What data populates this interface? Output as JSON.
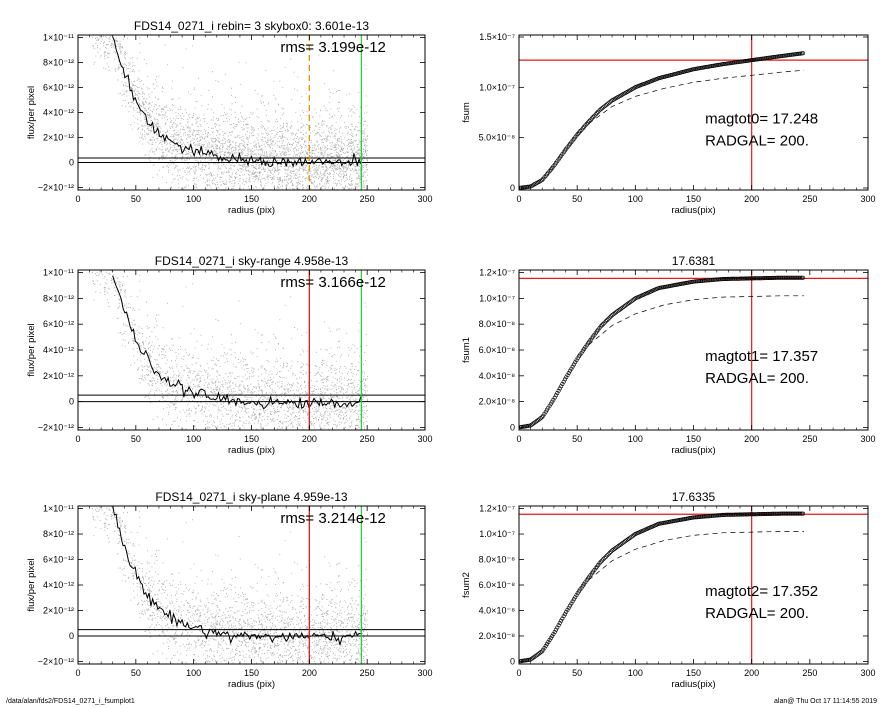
{
  "footer": {
    "left": "/data/alan/fds2/FDS14_0271_i_fsumplot1",
    "right": "alan@  Thu Oct 17 11:14:55 2019"
  },
  "colors": {
    "red": "#e41a1c",
    "green": "#2ecc40",
    "orange": "#f09000",
    "gray": "#a8a8a8",
    "black": "#000000"
  },
  "chart_data": [
    {
      "type": "scatter",
      "title": "FDS14_0271_i rebin= 3    skybox0:  3.601e-13",
      "annotation": "rms= 3.199e-12",
      "xlabel": "radius (pix)",
      "ylabel": "flux/per pixel",
      "xlim": [
        0,
        300
      ],
      "ylim": [
        -2.2e-12,
        1.02e-11
      ],
      "xticks": [
        0,
        50,
        100,
        150,
        200,
        250,
        300
      ],
      "yticks": [
        {
          "value": 1e-11,
          "label": "1×10⁻¹¹"
        },
        {
          "value": 8e-12,
          "label": "8×10⁻¹²"
        },
        {
          "value": 6e-12,
          "label": "6×10⁻¹²"
        },
        {
          "value": 4e-12,
          "label": "4×10⁻¹²"
        },
        {
          "value": 2e-12,
          "label": "2×10⁻¹²"
        },
        {
          "value": 0,
          "label": "0"
        },
        {
          "value": -2e-12,
          "label": "−2×10⁻¹²"
        }
      ],
      "profile": [
        [
          30,
          1e-11
        ],
        [
          35,
          8.8e-12
        ],
        [
          40,
          7.2e-12
        ],
        [
          45,
          6e-12
        ],
        [
          50,
          5e-12
        ],
        [
          55,
          4.1e-12
        ],
        [
          60,
          3.4e-12
        ],
        [
          70,
          2.4e-12
        ],
        [
          80,
          1.7e-12
        ],
        [
          90,
          1.2e-12
        ],
        [
          100,
          9e-13
        ],
        [
          110,
          6.5e-13
        ],
        [
          120,
          4.5e-13
        ],
        [
          130,
          3e-13
        ],
        [
          140,
          2e-13
        ],
        [
          150,
          1.3e-13
        ],
        [
          170,
          6e-14
        ],
        [
          200,
          2e-14
        ],
        [
          245,
          0
        ]
      ],
      "hlines": [
        3.6e-13,
        0
      ],
      "vlines": [
        {
          "x": 200,
          "style": "orange-dashed"
        },
        {
          "x": 245,
          "style": "green"
        }
      ]
    },
    {
      "type": "line",
      "title": "",
      "annotation_lines": [
        "magtot0=  17.248",
        "RADGAL=    200."
      ],
      "xlabel": "radius(pix)",
      "ylabel": "fsum",
      "xlim": [
        0,
        300
      ],
      "ylim": [
        -2e-09,
        1.52e-07
      ],
      "xticks": [
        0,
        50,
        100,
        150,
        200,
        250,
        300
      ],
      "yticks": [
        {
          "value": 1.5e-07,
          "label": "1.5×10⁻⁷"
        },
        {
          "value": 1e-07,
          "label": "1.0×10⁻⁷"
        },
        {
          "value": 5e-08,
          "label": "5.0×10⁻⁸"
        },
        {
          "value": 0,
          "label": "0"
        }
      ],
      "curve": [
        [
          0,
          0
        ],
        [
          10,
          1.5e-09
        ],
        [
          20,
          8e-09
        ],
        [
          30,
          2.2e-08
        ],
        [
          40,
          3.8e-08
        ],
        [
          50,
          5.3e-08
        ],
        [
          60,
          6.6e-08
        ],
        [
          70,
          7.8e-08
        ],
        [
          80,
          8.7e-08
        ],
        [
          100,
          1e-07
        ],
        [
          120,
          1.09e-07
        ],
        [
          150,
          1.18e-07
        ],
        [
          175,
          1.23e-07
        ],
        [
          200,
          1.27e-07
        ],
        [
          225,
          1.31e-07
        ],
        [
          245,
          1.34e-07
        ]
      ],
      "dashed": [
        [
          60,
          6.4e-08
        ],
        [
          80,
          8.1e-08
        ],
        [
          100,
          9.1e-08
        ],
        [
          125,
          9.9e-08
        ],
        [
          150,
          1.05e-07
        ],
        [
          175,
          1.09e-07
        ],
        [
          200,
          1.12e-07
        ],
        [
          225,
          1.15e-07
        ],
        [
          245,
          1.17e-07
        ]
      ],
      "hline": 1.27e-07,
      "vline": 200
    },
    {
      "type": "scatter",
      "title": "FDS14_0271_i sky-range  4.958e-13",
      "annotation": "rms= 3.166e-12",
      "xlabel": "radius (pix)",
      "ylabel": "flux/per pixel",
      "xlim": [
        0,
        300
      ],
      "ylim": [
        -2.2e-12,
        1.02e-11
      ],
      "xticks": [
        0,
        50,
        100,
        150,
        200,
        250,
        300
      ],
      "yticks": [
        {
          "value": 1e-11,
          "label": "1×10⁻¹¹"
        },
        {
          "value": 8e-12,
          "label": "8×10⁻¹²"
        },
        {
          "value": 6e-12,
          "label": "6×10⁻¹²"
        },
        {
          "value": 4e-12,
          "label": "4×10⁻¹²"
        },
        {
          "value": 2e-12,
          "label": "2×10⁻¹²"
        },
        {
          "value": 0,
          "label": "0"
        },
        {
          "value": -2e-12,
          "label": "−2×10⁻¹²"
        }
      ],
      "profile": [
        [
          30,
          1e-11
        ],
        [
          35,
          8.6e-12
        ],
        [
          40,
          7e-12
        ],
        [
          45,
          5.8e-12
        ],
        [
          50,
          4.8e-12
        ],
        [
          55,
          3.9e-12
        ],
        [
          60,
          3.2e-12
        ],
        [
          70,
          2.2e-12
        ],
        [
          80,
          1.5e-12
        ],
        [
          90,
          1e-12
        ],
        [
          100,
          7e-13
        ],
        [
          110,
          4.5e-13
        ],
        [
          120,
          2.5e-13
        ],
        [
          130,
          1e-13
        ],
        [
          140,
          0
        ],
        [
          150,
          -5e-14
        ],
        [
          170,
          -1e-13
        ],
        [
          200,
          -1.2e-13
        ],
        [
          245,
          -1.3e-13
        ]
      ],
      "hlines": [
        5e-13,
        0
      ],
      "vlines": [
        {
          "x": 200,
          "style": "red"
        },
        {
          "x": 245,
          "style": "green"
        }
      ]
    },
    {
      "type": "line",
      "title": "17.6381",
      "annotation_lines": [
        "magtot1=  17.357",
        "RADGAL=    200."
      ],
      "xlabel": "radius(pix)",
      "ylabel": "fsum1",
      "xlim": [
        0,
        300
      ],
      "ylim": [
        -2e-09,
        1.22e-07
      ],
      "xticks": [
        0,
        50,
        100,
        150,
        200,
        250,
        300
      ],
      "yticks": [
        {
          "value": 1.2e-07,
          "label": "1.2×10⁻⁷"
        },
        {
          "value": 1e-07,
          "label": "1.0×10⁻⁷"
        },
        {
          "value": 8e-08,
          "label": "8.0×10⁻⁸"
        },
        {
          "value": 6e-08,
          "label": "6.0×10⁻⁸"
        },
        {
          "value": 4e-08,
          "label": "4.0×10⁻⁸"
        },
        {
          "value": 2e-08,
          "label": "2.0×10⁻⁸"
        },
        {
          "value": 0,
          "label": "0"
        }
      ],
      "curve": [
        [
          0,
          0
        ],
        [
          10,
          1.5e-09
        ],
        [
          20,
          8e-09
        ],
        [
          30,
          2.2e-08
        ],
        [
          40,
          3.8e-08
        ],
        [
          50,
          5.3e-08
        ],
        [
          60,
          6.6e-08
        ],
        [
          70,
          7.8e-08
        ],
        [
          80,
          8.7e-08
        ],
        [
          100,
          1e-07
        ],
        [
          120,
          1.08e-07
        ],
        [
          150,
          1.13e-07
        ],
        [
          175,
          1.15e-07
        ],
        [
          200,
          1.155e-07
        ],
        [
          225,
          1.16e-07
        ],
        [
          245,
          1.16e-07
        ]
      ],
      "dashed": [
        [
          60,
          6.4e-08
        ],
        [
          80,
          7.9e-08
        ],
        [
          100,
          8.8e-08
        ],
        [
          125,
          9.5e-08
        ],
        [
          150,
          9.9e-08
        ],
        [
          175,
          1.01e-07
        ],
        [
          200,
          1.015e-07
        ],
        [
          225,
          1.02e-07
        ],
        [
          245,
          1.02e-07
        ]
      ],
      "hline": 1.155e-07,
      "vline": 200
    },
    {
      "type": "scatter",
      "title": "FDS14_0271_i sky-plane  4.959e-13",
      "annotation": "rms= 3.214e-12",
      "xlabel": "radius (pix)",
      "ylabel": "flux/per pixel",
      "xlim": [
        0,
        300
      ],
      "ylim": [
        -2.2e-12,
        1.02e-11
      ],
      "xticks": [
        0,
        50,
        100,
        150,
        200,
        250,
        300
      ],
      "yticks": [
        {
          "value": 1e-11,
          "label": "1×10⁻¹¹"
        },
        {
          "value": 8e-12,
          "label": "8×10⁻¹²"
        },
        {
          "value": 6e-12,
          "label": "6×10⁻¹²"
        },
        {
          "value": 4e-12,
          "label": "4×10⁻¹²"
        },
        {
          "value": 2e-12,
          "label": "2×10⁻¹²"
        },
        {
          "value": 0,
          "label": "0"
        },
        {
          "value": -2e-12,
          "label": "−2×10⁻¹²"
        }
      ],
      "profile": [
        [
          30,
          1e-11
        ],
        [
          35,
          8.6e-12
        ],
        [
          40,
          7e-12
        ],
        [
          45,
          5.8e-12
        ],
        [
          50,
          4.8e-12
        ],
        [
          55,
          3.9e-12
        ],
        [
          60,
          3.2e-12
        ],
        [
          70,
          2.2e-12
        ],
        [
          80,
          1.5e-12
        ],
        [
          90,
          1e-12
        ],
        [
          100,
          7e-13
        ],
        [
          110,
          4.5e-13
        ],
        [
          120,
          2.5e-13
        ],
        [
          130,
          1e-13
        ],
        [
          140,
          0
        ],
        [
          150,
          -2e-14
        ],
        [
          170,
          -6e-14
        ],
        [
          200,
          -8e-14
        ],
        [
          245,
          -9e-14
        ]
      ],
      "hlines": [
        5e-13,
        0
      ],
      "vlines": [
        {
          "x": 200,
          "style": "red"
        },
        {
          "x": 245,
          "style": "green"
        }
      ]
    },
    {
      "type": "line",
      "title": "17.6335",
      "annotation_lines": [
        "magtot2=  17.352",
        "RADGAL=    200."
      ],
      "xlabel": "radius(pix)",
      "ylabel": "fsum2",
      "xlim": [
        0,
        300
      ],
      "ylim": [
        -2e-09,
        1.22e-07
      ],
      "xticks": [
        0,
        50,
        100,
        150,
        200,
        250,
        300
      ],
      "yticks": [
        {
          "value": 1.2e-07,
          "label": "1.2×10⁻⁷"
        },
        {
          "value": 1e-07,
          "label": "1.0×10⁻⁷"
        },
        {
          "value": 8e-08,
          "label": "8.0×10⁻⁸"
        },
        {
          "value": 6e-08,
          "label": "6.0×10⁻⁸"
        },
        {
          "value": 4e-08,
          "label": "4.0×10⁻⁸"
        },
        {
          "value": 2e-08,
          "label": "2.0×10⁻⁸"
        },
        {
          "value": 0,
          "label": "0"
        }
      ],
      "curve": [
        [
          0,
          0
        ],
        [
          10,
          1.5e-09
        ],
        [
          20,
          8e-09
        ],
        [
          30,
          2.2e-08
        ],
        [
          40,
          3.8e-08
        ],
        [
          50,
          5.3e-08
        ],
        [
          60,
          6.6e-08
        ],
        [
          70,
          7.8e-08
        ],
        [
          80,
          8.7e-08
        ],
        [
          100,
          1e-07
        ],
        [
          120,
          1.08e-07
        ],
        [
          150,
          1.13e-07
        ],
        [
          175,
          1.15e-07
        ],
        [
          200,
          1.155e-07
        ],
        [
          225,
          1.16e-07
        ],
        [
          245,
          1.16e-07
        ]
      ],
      "dashed": [
        [
          60,
          6.4e-08
        ],
        [
          80,
          7.9e-08
        ],
        [
          100,
          8.8e-08
        ],
        [
          125,
          9.5e-08
        ],
        [
          150,
          9.9e-08
        ],
        [
          175,
          1.01e-07
        ],
        [
          200,
          1.015e-07
        ],
        [
          225,
          1.02e-07
        ],
        [
          245,
          1.02e-07
        ]
      ],
      "hline": 1.155e-07,
      "vline": 200
    }
  ]
}
